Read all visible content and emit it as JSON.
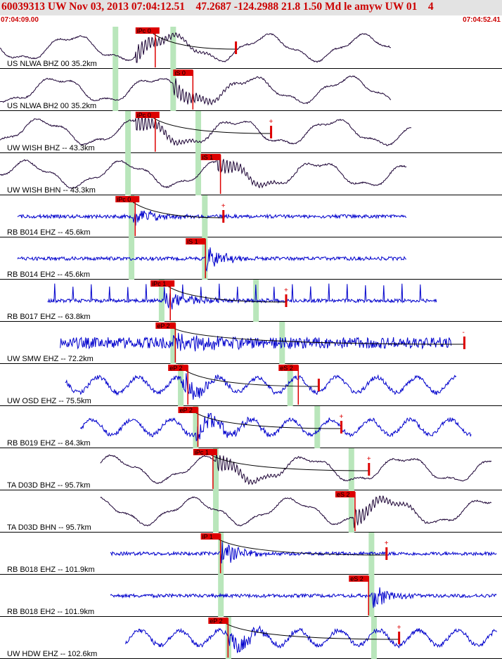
{
  "header": {
    "title": "60039313 UW Nov 03, 2013 07:04:12.51    47.2687 -124.2988 21.8 1.50 Md le amyw UW 01    4",
    "start_time": "07:04:09.00",
    "end_time": "07:04:52.41"
  },
  "colors": {
    "broadband": "#1a0033",
    "short_period": "#0000cc",
    "pick": "#dd0000",
    "window": "#b9e6bb",
    "header_bg": "#e3e3e3"
  },
  "traces": [
    {
      "label": "US NLWA BHZ 00 35.2km",
      "color": "#1a0033",
      "kind": "long",
      "start": 0.0,
      "end": 0.78,
      "burst": 0.27,
      "pick": "iPc 0",
      "pick_pos": 0.27,
      "window1": 0.23,
      "window2": 0.345,
      "has_curve": true,
      "mark": 0.47,
      "mark_sign": ""
    },
    {
      "label": "US NLWA BH2 00 35.2km",
      "color": "#1a0033",
      "kind": "long",
      "start": 0.0,
      "end": 0.78,
      "burst": 0.345,
      "pick": "iS 0",
      "pick_pos": 0.345,
      "window1": 0.23,
      "window2": 0.345,
      "has_curve": false,
      "mark": null,
      "mark_sign": ""
    },
    {
      "label": "UW WISH BHZ -- 43.3km",
      "color": "#1a0033",
      "kind": "long",
      "start": 0.0,
      "end": 0.82,
      "burst": 0.27,
      "pick": "iPc 0",
      "pick_pos": 0.27,
      "window1": 0.255,
      "window2": 0.395,
      "has_curve": true,
      "mark": 0.54,
      "mark_sign": "+"
    },
    {
      "label": "UW WISH BHN -- 43.3km",
      "color": "#1a0033",
      "kind": "long",
      "start": 0.0,
      "end": 0.81,
      "burst": 0.43,
      "pick": "iS 1",
      "pick_pos": 0.4,
      "window1": 0.255,
      "window2": 0.395,
      "has_curve": false,
      "mark": null,
      "mark_sign": ""
    },
    {
      "label": "RB B014 EHZ -- 45.6km",
      "color": "#0000cc",
      "kind": "sp",
      "start": 0.035,
      "end": 0.81,
      "burst": 0.265,
      "pick": "iPc 0",
      "pick_pos": 0.23,
      "window1": 0.262,
      "window2": 0.408,
      "has_curve": true,
      "mark": 0.445,
      "mark_sign": "+"
    },
    {
      "label": "RB B014 EH2 -- 45.6km",
      "color": "#0000cc",
      "kind": "sp",
      "start": 0.035,
      "end": 0.81,
      "burst": 0.41,
      "pick": "iS 1",
      "pick_pos": 0.37,
      "window1": 0.262,
      "window2": 0.408,
      "has_curve": false,
      "mark": null,
      "mark_sign": ""
    },
    {
      "label": "RB B017 EHZ -- 63.8km",
      "color": "#0000cc",
      "kind": "spike",
      "start": 0.095,
      "end": 0.87,
      "burst": 0.33,
      "pick": "iPc 1",
      "pick_pos": 0.3,
      "window1": 0.322,
      "window2": 0.51,
      "has_curve": true,
      "mark": 0.57,
      "mark_sign": "+"
    },
    {
      "label": "UW SMW EHZ -- 72.2km",
      "color": "#0000cc",
      "kind": "noise",
      "start": 0.12,
      "end": 0.9,
      "burst": 0.345,
      "pick": "eP 2",
      "pick_pos": 0.31,
      "window1": 0.345,
      "window2": 0.562,
      "has_curve": true,
      "mark": 0.925,
      "mark_sign": "-"
    },
    {
      "label": "UW OSD EHZ -- 75.5km",
      "color": "#0000cc",
      "kind": "mixed",
      "start": 0.13,
      "end": 0.91,
      "burst": 0.36,
      "pick": "eP 2",
      "pick_pos": 0.335,
      "window1": 0.36,
      "window2": 0.578,
      "has_curve": true,
      "mark": 0.635,
      "mark_sign": "",
      "pick2": "eS 2",
      "pick2_pos": 0.555
    },
    {
      "label": "RB B019 EHZ -- 84.3km",
      "color": "#0000cc",
      "kind": "mixed",
      "start": 0.16,
      "end": 0.94,
      "burst": 0.39,
      "pick": "eP 2",
      "pick_pos": 0.355,
      "window1": 0.39,
      "window2": 0.632,
      "has_curve": true,
      "mark": 0.68,
      "mark_sign": "+"
    },
    {
      "label": "TA D03D BHZ -- 95.7km",
      "color": "#1a0033",
      "kind": "long",
      "start": 0.2,
      "end": 0.98,
      "burst": 0.43,
      "pick": "iPc 1",
      "pick_pos": 0.385,
      "window1": 0.43,
      "window2": 0.7,
      "has_curve": true,
      "mark": 0.735,
      "mark_sign": "+"
    },
    {
      "label": "TA D03D BHN -- 95.7km",
      "color": "#1a0033",
      "kind": "long",
      "start": 0.2,
      "end": 0.98,
      "burst": 0.705,
      "pick": "eS 2",
      "pick_pos": 0.668,
      "window1": 0.43,
      "window2": 0.7,
      "has_curve": false,
      "mark": null,
      "mark_sign": ""
    },
    {
      "label": "RB B018 EHZ -- 101.9km",
      "color": "#0000cc",
      "kind": "sp",
      "start": 0.22,
      "end": 0.99,
      "burst": 0.44,
      "pick": "iP 1",
      "pick_pos": 0.4,
      "window1": 0.44,
      "window2": 0.74,
      "has_curve": true,
      "mark": 0.77,
      "mark_sign": "+"
    },
    {
      "label": "RB B018 EH2 -- 101.9km",
      "color": "#0000cc",
      "kind": "sp",
      "start": 0.22,
      "end": 0.99,
      "burst": 0.74,
      "pick": "eS 2",
      "pick_pos": 0.695,
      "window1": 0.44,
      "window2": 0.74,
      "has_curve": false,
      "mark": null,
      "mark_sign": ""
    },
    {
      "label": "UW HDW EHZ -- 102.6km",
      "color": "#0000cc",
      "kind": "mixed",
      "start": 0.25,
      "end": 0.99,
      "burst": 0.455,
      "pick": "eP 2",
      "pick_pos": 0.415,
      "window1": 0.455,
      "window2": 0.745,
      "has_curve": true,
      "mark": 0.795,
      "mark_sign": "+"
    }
  ]
}
